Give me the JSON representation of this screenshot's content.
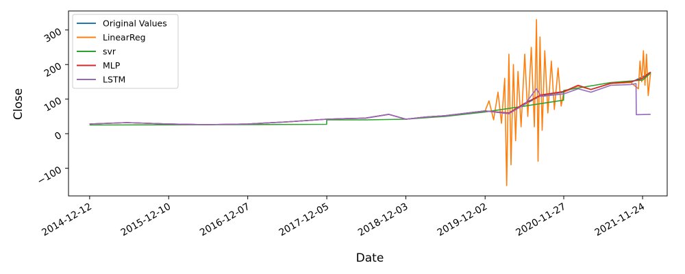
{
  "chart_data": {
    "type": "line",
    "title": "",
    "xlabel": "Date",
    "ylabel": "Close",
    "x_ticks": [
      "2014-12-12",
      "2015-12-10",
      "2016-12-07",
      "2017-12-05",
      "2018-12-03",
      "2019-12-02",
      "2020-11-27",
      "2021-11-24"
    ],
    "x_range": [
      "2014-09-06",
      "2022-03-17"
    ],
    "y_ticks": [
      -100,
      0,
      100,
      200,
      300
    ],
    "ylim": [
      -180,
      355
    ],
    "grid": false,
    "legend_position": "top-left",
    "series": [
      {
        "name": "Original Values",
        "color": "#1f77b4",
        "points": [
          [
            "2014-12-12",
            28
          ],
          [
            "2015-06-01",
            32
          ],
          [
            "2015-12-10",
            28
          ],
          [
            "2016-06-01",
            26
          ],
          [
            "2016-12-07",
            28
          ],
          [
            "2017-06-01",
            34
          ],
          [
            "2017-12-05",
            42
          ],
          [
            "2018-06-01",
            45
          ],
          [
            "2018-09-15",
            56
          ],
          [
            "2018-12-03",
            42
          ],
          [
            "2019-03-01",
            48
          ],
          [
            "2019-06-01",
            52
          ],
          [
            "2019-12-02",
            66
          ],
          [
            "2020-03-20",
            58
          ],
          [
            "2020-06-01",
            85
          ],
          [
            "2020-08-15",
            110
          ],
          [
            "2020-11-27",
            120
          ],
          [
            "2021-02-01",
            138
          ],
          [
            "2021-04-01",
            128
          ],
          [
            "2021-07-01",
            145
          ],
          [
            "2021-10-01",
            148
          ],
          [
            "2021-11-24",
            165
          ],
          [
            "2021-12-31",
            178
          ]
        ]
      },
      {
        "name": "LinearReg",
        "color": "#ff7f0e",
        "points": [
          [
            "2014-12-12",
            28
          ],
          [
            "2015-06-01",
            32
          ],
          [
            "2015-12-10",
            28
          ],
          [
            "2016-06-01",
            26
          ],
          [
            "2016-12-07",
            28
          ],
          [
            "2017-06-01",
            34
          ],
          [
            "2017-12-05",
            42
          ],
          [
            "2018-06-01",
            45
          ],
          [
            "2018-09-15",
            56
          ],
          [
            "2018-12-03",
            42
          ],
          [
            "2019-03-01",
            48
          ],
          [
            "2019-06-01",
            52
          ],
          [
            "2019-12-02",
            66
          ],
          [
            "2019-12-20",
            95
          ],
          [
            "2020-01-10",
            40
          ],
          [
            "2020-01-30",
            120
          ],
          [
            "2020-02-15",
            30
          ],
          [
            "2020-03-01",
            160
          ],
          [
            "2020-03-10",
            -150
          ],
          [
            "2020-03-20",
            230
          ],
          [
            "2020-03-30",
            -90
          ],
          [
            "2020-04-10",
            200
          ],
          [
            "2020-04-20",
            -20
          ],
          [
            "2020-05-01",
            180
          ],
          [
            "2020-05-15",
            20
          ],
          [
            "2020-06-01",
            230
          ],
          [
            "2020-06-15",
            50
          ],
          [
            "2020-07-01",
            250
          ],
          [
            "2020-07-15",
            20
          ],
          [
            "2020-07-25",
            330
          ],
          [
            "2020-08-01",
            -80
          ],
          [
            "2020-08-10",
            280
          ],
          [
            "2020-08-20",
            10
          ],
          [
            "2020-09-01",
            240
          ],
          [
            "2020-09-15",
            60
          ],
          [
            "2020-10-01",
            210
          ],
          [
            "2020-10-15",
            70
          ],
          [
            "2020-11-01",
            190
          ],
          [
            "2020-11-15",
            80
          ],
          [
            "2020-11-27",
            120
          ],
          [
            "2021-02-01",
            138
          ],
          [
            "2021-04-01",
            128
          ],
          [
            "2021-07-01",
            145
          ],
          [
            "2021-10-01",
            148
          ],
          [
            "2021-11-05",
            130
          ],
          [
            "2021-11-12",
            210
          ],
          [
            "2021-11-20",
            150
          ],
          [
            "2021-11-28",
            240
          ],
          [
            "2021-12-05",
            140
          ],
          [
            "2021-12-12",
            230
          ],
          [
            "2021-12-20",
            110
          ],
          [
            "2021-12-31",
            178
          ]
        ]
      },
      {
        "name": "svr",
        "color": "#2ca02c",
        "points": [
          [
            "2014-12-12",
            25
          ],
          [
            "2017-12-04",
            27
          ],
          [
            "2017-12-05",
            40
          ],
          [
            "2018-06-01",
            40
          ],
          [
            "2018-12-03",
            42
          ],
          [
            "2019-06-01",
            50
          ],
          [
            "2019-12-02",
            63
          ],
          [
            "2020-06-01",
            80
          ],
          [
            "2020-11-26",
            97
          ],
          [
            "2020-11-27",
            125
          ],
          [
            "2021-03-01",
            135
          ],
          [
            "2021-07-01",
            148
          ],
          [
            "2021-11-24",
            155
          ],
          [
            "2021-12-31",
            175
          ]
        ]
      },
      {
        "name": "MLP",
        "color": "#d62728",
        "points": [
          [
            "2014-12-12",
            28
          ],
          [
            "2015-06-01",
            32
          ],
          [
            "2015-12-10",
            28
          ],
          [
            "2016-06-01",
            26
          ],
          [
            "2016-12-07",
            28
          ],
          [
            "2017-06-01",
            34
          ],
          [
            "2017-12-05",
            42
          ],
          [
            "2018-06-01",
            45
          ],
          [
            "2018-09-15",
            56
          ],
          [
            "2018-12-03",
            42
          ],
          [
            "2019-03-01",
            48
          ],
          [
            "2019-06-01",
            52
          ],
          [
            "2019-12-02",
            66
          ],
          [
            "2020-03-20",
            60
          ],
          [
            "2020-06-01",
            88
          ],
          [
            "2020-08-15",
            112
          ],
          [
            "2020-11-27",
            122
          ],
          [
            "2021-02-01",
            140
          ],
          [
            "2021-04-01",
            128
          ],
          [
            "2021-07-01",
            146
          ],
          [
            "2021-10-01",
            150
          ],
          [
            "2021-11-24",
            160
          ],
          [
            "2021-12-31",
            178
          ]
        ]
      },
      {
        "name": "LSTM",
        "color": "#9467bd",
        "points": [
          [
            "2014-12-12",
            28
          ],
          [
            "2015-06-01",
            32
          ],
          [
            "2015-12-10",
            28
          ],
          [
            "2016-06-01",
            26
          ],
          [
            "2016-12-07",
            28
          ],
          [
            "2017-06-01",
            34
          ],
          [
            "2017-12-05",
            42
          ],
          [
            "2018-06-01",
            45
          ],
          [
            "2018-09-15",
            56
          ],
          [
            "2018-12-03",
            42
          ],
          [
            "2019-03-01",
            48
          ],
          [
            "2019-06-01",
            52
          ],
          [
            "2019-12-02",
            66
          ],
          [
            "2020-03-20",
            58
          ],
          [
            "2020-06-01",
            85
          ],
          [
            "2020-07-25",
            130
          ],
          [
            "2020-08-15",
            108
          ],
          [
            "2020-11-27",
            115
          ],
          [
            "2021-02-01",
            130
          ],
          [
            "2021-04-01",
            120
          ],
          [
            "2021-07-01",
            140
          ],
          [
            "2021-10-01",
            142
          ],
          [
            "2021-10-25",
            145
          ],
          [
            "2021-10-26",
            55
          ],
          [
            "2021-12-31",
            56
          ]
        ]
      }
    ]
  }
}
